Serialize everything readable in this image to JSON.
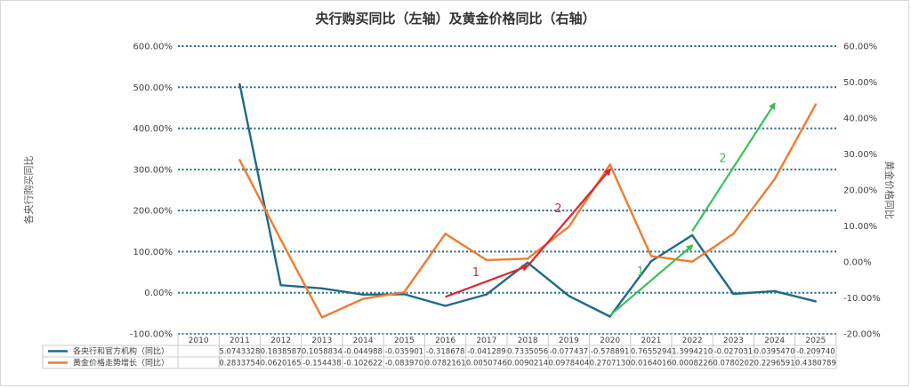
{
  "chart_data": {
    "type": "line",
    "title": "央行购买同比（左轴）及黄金价格同比（右轴）",
    "ylabel_left": "各央行购买同比",
    "ylabel_right": "黄金价格同比",
    "categories": [
      "2010",
      "2011",
      "2012",
      "2013",
      "2014",
      "2015",
      "2016",
      "2017",
      "2018",
      "2019",
      "2020",
      "2021",
      "2022",
      "2023",
      "2024",
      "2025"
    ],
    "y_left": {
      "ylim": [
        -1.0,
        6.0
      ],
      "ticks": [
        -1.0,
        0.0,
        1.0,
        2.0,
        3.0,
        4.0,
        5.0,
        6.0
      ],
      "tick_labels": [
        "-100.00%",
        "0.00%",
        "100.00%",
        "200.00%",
        "300.00%",
        "400.00%",
        "500.00%",
        "600.00%"
      ]
    },
    "y_right": {
      "ylim": [
        -0.2,
        0.6
      ],
      "ticks": [
        -0.2,
        -0.1,
        0.0,
        0.1,
        0.2,
        0.3,
        0.4,
        0.5,
        0.6
      ],
      "tick_labels": [
        "-20.00%",
        "-10.00%",
        "0.00%",
        "10.00%",
        "20.00%",
        "30.00%",
        "40.00%",
        "50.00%",
        "60.00%"
      ]
    },
    "series": [
      {
        "name": "各央行和官方机构（同比）",
        "axis": "left",
        "color": "#1f6a8a",
        "values": [
          null,
          5.0743328,
          0.1838587,
          0.1058834,
          -0.044988,
          -0.035901,
          -0.318678,
          -0.041289,
          0.7335056,
          -0.077437,
          -0.578891,
          0.7655294,
          1.399421,
          -0.027031,
          0.039547,
          -0.20974
        ],
        "table_values": [
          "",
          "5.0743328",
          "0.1838587",
          "0.1058834",
          "-0.044988",
          "-0.035901",
          "-0.318678",
          "-0.041289",
          "0.7335056",
          "-0.077437",
          "-0.578891",
          "0.7655294",
          "1.3994210",
          "-0.027031",
          "0.0395470",
          "-0.209740"
        ]
      },
      {
        "name": "黄金价格走势增长（同比）",
        "axis": "right",
        "color": "#ed7d31",
        "values": [
          null,
          0.2833754,
          0.0620165,
          -0.154438,
          -0.102622,
          -0.08397,
          0.0782161,
          0.0050746,
          0.0090214,
          0.0978404,
          0.270713,
          0.0164016,
          0.0008226,
          0.0780202,
          0.2296591,
          0.4380789
        ],
        "table_values": [
          "",
          "0.2833754",
          "0.0620165",
          "-0.154438",
          "-0.102622",
          "-0.083970",
          "0.0782161",
          "0.0050746",
          "0.0090214",
          "0.0978404",
          "0.2707130",
          "0.0164016",
          "0.0008226",
          "0.0780202",
          "0.2296591",
          "0.4380789"
        ]
      }
    ],
    "grid": "dotted-horizontal",
    "legend": "bottom-data-table",
    "annotations": [
      {
        "label": "1",
        "color": "#e0242f",
        "from": [
          "2016",
          -0.1
        ],
        "to": [
          "2018",
          0.65
        ]
      },
      {
        "label": "2",
        "color": "#e0242f",
        "from": [
          "2018",
          0.65
        ],
        "to": [
          "2020",
          3.0
        ]
      },
      {
        "label": "1",
        "color": "#3cbf5a",
        "from": [
          "2020",
          -0.55
        ],
        "to": [
          "2022",
          1.15
        ]
      },
      {
        "label": "2",
        "color": "#3cbf5a",
        "from": [
          "2022",
          1.5
        ],
        "to": [
          "2024",
          4.6
        ]
      }
    ]
  }
}
